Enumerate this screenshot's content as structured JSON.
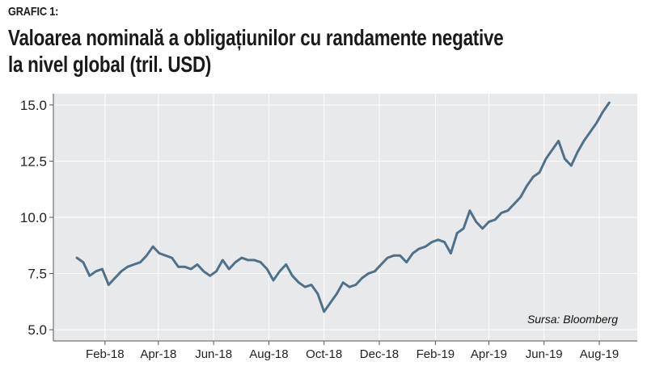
{
  "header": {
    "label": "GRAFIC 1:",
    "title_line1": "Valoarea nominală a obligațiunilor cu randamente negative",
    "title_line2": "la nivel global (tril. USD)"
  },
  "source": "Sursa: Bloomberg",
  "colors": {
    "plot_bg": "#e8e9ea",
    "line": "#4f7189",
    "grid": "#ffffff"
  },
  "chart_data": {
    "type": "line",
    "title": "Valoarea nominală a obligațiunilor cu randamente negative la nivel global (tril. USD)",
    "xlabel": "",
    "ylabel": "",
    "ylim": [
      4.5,
      15.5
    ],
    "y_ticks": [
      "5.0",
      "7.5",
      "10.0",
      "12.5",
      "15.0"
    ],
    "x_ticks": [
      "Feb-18",
      "Apr-18",
      "Jun-18",
      "Aug-18",
      "Oct-18",
      "Dec-18",
      "Feb-19",
      "Apr-19",
      "Jun-19",
      "Aug-19"
    ],
    "grid": true,
    "legend": "none",
    "series": [
      {
        "x": [
          "2018-01-01",
          "2018-01-08",
          "2018-01-15",
          "2018-01-22",
          "2018-01-29",
          "2018-02-05",
          "2018-02-12",
          "2018-02-19",
          "2018-02-26",
          "2018-03-05",
          "2018-03-12",
          "2018-03-19",
          "2018-03-26",
          "2018-04-02",
          "2018-04-09",
          "2018-04-16",
          "2018-04-23",
          "2018-04-30",
          "2018-05-07",
          "2018-05-14",
          "2018-05-21",
          "2018-05-28",
          "2018-06-04",
          "2018-06-11",
          "2018-06-18",
          "2018-06-25",
          "2018-07-02",
          "2018-07-09",
          "2018-07-16",
          "2018-07-23",
          "2018-07-30",
          "2018-08-06",
          "2018-08-13",
          "2018-08-20",
          "2018-08-27",
          "2018-09-03",
          "2018-09-10",
          "2018-09-17",
          "2018-09-24",
          "2018-10-01",
          "2018-10-08",
          "2018-10-15",
          "2018-10-22",
          "2018-10-29",
          "2018-11-05",
          "2018-11-12",
          "2018-11-19",
          "2018-11-26",
          "2018-12-03",
          "2018-12-10",
          "2018-12-17",
          "2018-12-24",
          "2018-12-31",
          "2019-01-07",
          "2019-01-14",
          "2019-01-21",
          "2019-01-28",
          "2019-02-04",
          "2019-02-11",
          "2019-02-18",
          "2019-02-25",
          "2019-03-04",
          "2019-03-11",
          "2019-03-18",
          "2019-03-25",
          "2019-04-01",
          "2019-04-08",
          "2019-04-15",
          "2019-04-22",
          "2019-04-29",
          "2019-05-06",
          "2019-05-13",
          "2019-05-20",
          "2019-05-27",
          "2019-06-03",
          "2019-06-10",
          "2019-06-17",
          "2019-06-24",
          "2019-07-01",
          "2019-07-08",
          "2019-07-15",
          "2019-07-22",
          "2019-07-29",
          "2019-08-05",
          "2019-08-12"
        ],
        "values": [
          8.2,
          8.0,
          7.4,
          7.6,
          7.7,
          7.0,
          7.3,
          7.6,
          7.8,
          7.9,
          8.0,
          8.3,
          8.7,
          8.4,
          8.3,
          8.2,
          7.8,
          7.8,
          7.7,
          7.9,
          7.6,
          7.4,
          7.6,
          8.1,
          7.7,
          8.0,
          8.2,
          8.1,
          8.1,
          8.0,
          7.7,
          7.2,
          7.6,
          7.9,
          7.4,
          7.1,
          6.9,
          7.0,
          6.6,
          5.8,
          6.2,
          6.6,
          7.1,
          6.9,
          7.0,
          7.3,
          7.5,
          7.6,
          7.9,
          8.2,
          8.3,
          8.3,
          8.0,
          8.4,
          8.6,
          8.7,
          8.9,
          9.0,
          8.9,
          8.4,
          9.3,
          9.5,
          10.3,
          9.8,
          9.5,
          9.8,
          9.9,
          10.2,
          10.3,
          10.6,
          10.9,
          11.4,
          11.8,
          12.0,
          12.6,
          13.0,
          13.4,
          12.6,
          12.3,
          12.9,
          13.4,
          13.8,
          14.2,
          14.7,
          15.1
        ]
      }
    ]
  }
}
